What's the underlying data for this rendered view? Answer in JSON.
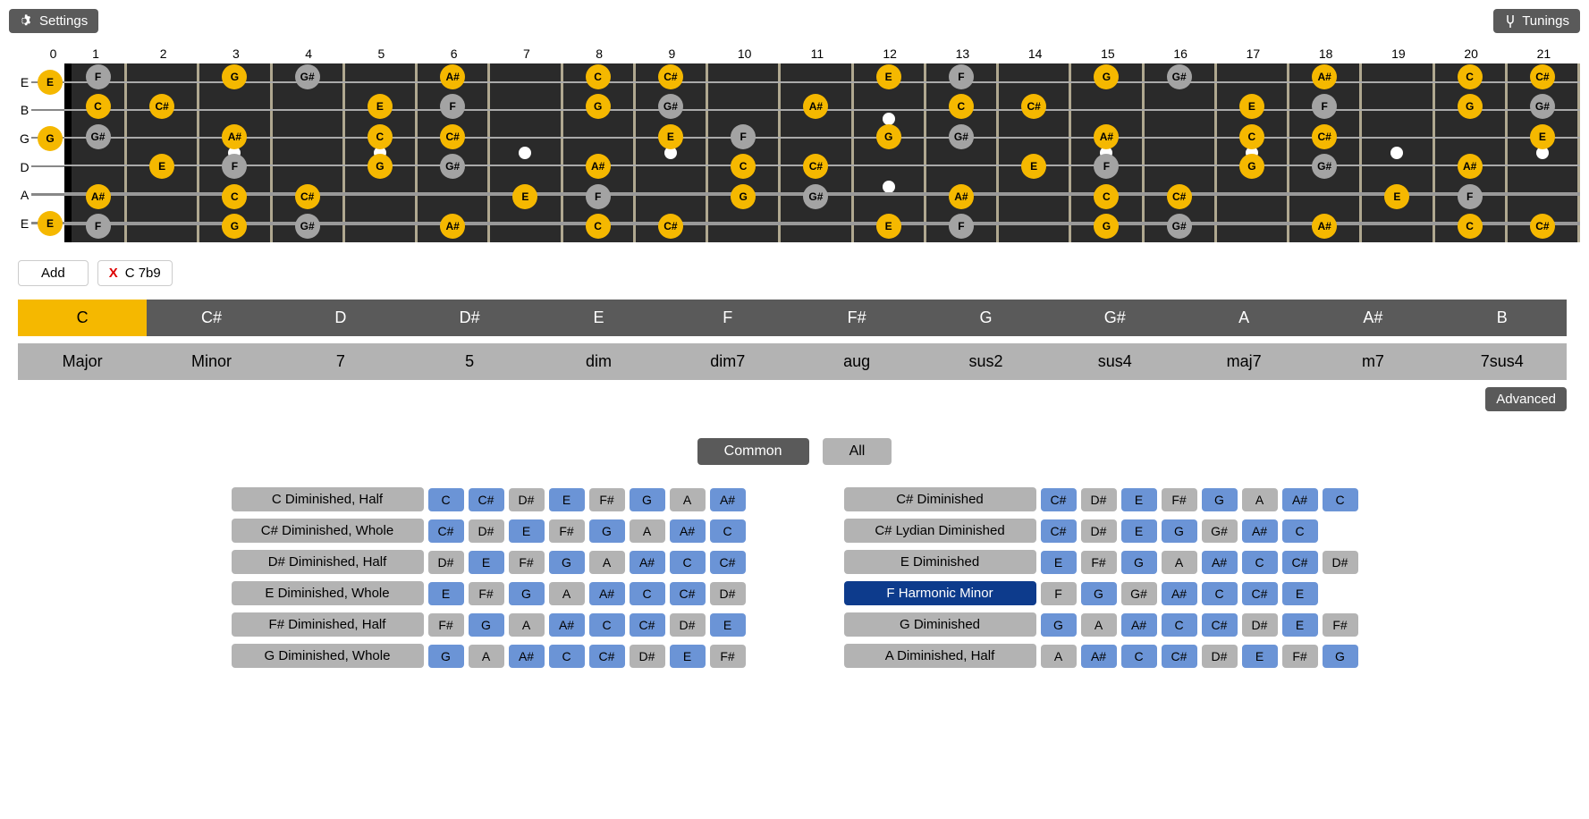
{
  "topbar": {
    "settings_label": "Settings",
    "tunings_label": "Tunings"
  },
  "fretboard": {
    "num_frets": 21,
    "string_labels": [
      "E",
      "B",
      "G",
      "D",
      "A",
      "E"
    ],
    "open_notes": [
      {
        "label": "E",
        "cls": "scale"
      },
      null,
      {
        "label": "G",
        "cls": "scale"
      },
      null,
      null,
      {
        "label": "E",
        "cls": "scale"
      }
    ],
    "inlay_single": [
      3,
      5,
      7,
      9,
      15,
      17,
      19,
      21
    ],
    "inlay_double": [
      12
    ],
    "string_y": [
      15,
      48,
      82,
      115,
      149,
      182
    ],
    "notes": [
      {
        "s": 0,
        "f": 1,
        "l": "F",
        "c": "other"
      },
      {
        "s": 0,
        "f": 3,
        "l": "G",
        "c": "scale"
      },
      {
        "s": 0,
        "f": 4,
        "l": "G#",
        "c": "other"
      },
      {
        "s": 0,
        "f": 6,
        "l": "A#",
        "c": "scale"
      },
      {
        "s": 0,
        "f": 8,
        "l": "C",
        "c": "scale"
      },
      {
        "s": 0,
        "f": 9,
        "l": "C#",
        "c": "scale"
      },
      {
        "s": 0,
        "f": 12,
        "l": "E",
        "c": "scale"
      },
      {
        "s": 0,
        "f": 13,
        "l": "F",
        "c": "other"
      },
      {
        "s": 0,
        "f": 15,
        "l": "G",
        "c": "scale"
      },
      {
        "s": 0,
        "f": 16,
        "l": "G#",
        "c": "other"
      },
      {
        "s": 0,
        "f": 18,
        "l": "A#",
        "c": "scale"
      },
      {
        "s": 0,
        "f": 20,
        "l": "C",
        "c": "scale"
      },
      {
        "s": 0,
        "f": 21,
        "l": "C#",
        "c": "scale"
      },
      {
        "s": 1,
        "f": 1,
        "l": "C",
        "c": "scale"
      },
      {
        "s": 1,
        "f": 2,
        "l": "C#",
        "c": "scale"
      },
      {
        "s": 1,
        "f": 5,
        "l": "E",
        "c": "scale"
      },
      {
        "s": 1,
        "f": 6,
        "l": "F",
        "c": "other"
      },
      {
        "s": 1,
        "f": 8,
        "l": "G",
        "c": "scale"
      },
      {
        "s": 1,
        "f": 9,
        "l": "G#",
        "c": "other"
      },
      {
        "s": 1,
        "f": 11,
        "l": "A#",
        "c": "scale"
      },
      {
        "s": 1,
        "f": 13,
        "l": "C",
        "c": "scale"
      },
      {
        "s": 1,
        "f": 14,
        "l": "C#",
        "c": "scale"
      },
      {
        "s": 1,
        "f": 17,
        "l": "E",
        "c": "scale"
      },
      {
        "s": 1,
        "f": 18,
        "l": "F",
        "c": "other"
      },
      {
        "s": 1,
        "f": 20,
        "l": "G",
        "c": "scale"
      },
      {
        "s": 1,
        "f": 21,
        "l": "G#",
        "c": "other"
      },
      {
        "s": 2,
        "f": 1,
        "l": "G#",
        "c": "other"
      },
      {
        "s": 2,
        "f": 3,
        "l": "A#",
        "c": "scale"
      },
      {
        "s": 2,
        "f": 5,
        "l": "C",
        "c": "scale"
      },
      {
        "s": 2,
        "f": 6,
        "l": "C#",
        "c": "scale"
      },
      {
        "s": 2,
        "f": 9,
        "l": "E",
        "c": "scale"
      },
      {
        "s": 2,
        "f": 10,
        "l": "F",
        "c": "other"
      },
      {
        "s": 2,
        "f": 12,
        "l": "G",
        "c": "scale"
      },
      {
        "s": 2,
        "f": 13,
        "l": "G#",
        "c": "other"
      },
      {
        "s": 2,
        "f": 15,
        "l": "A#",
        "c": "scale"
      },
      {
        "s": 2,
        "f": 17,
        "l": "C",
        "c": "scale"
      },
      {
        "s": 2,
        "f": 18,
        "l": "C#",
        "c": "scale"
      },
      {
        "s": 2,
        "f": 21,
        "l": "E",
        "c": "scale"
      },
      {
        "s": 3,
        "f": 2,
        "l": "E",
        "c": "scale"
      },
      {
        "s": 3,
        "f": 3,
        "l": "F",
        "c": "other"
      },
      {
        "s": 3,
        "f": 5,
        "l": "G",
        "c": "scale"
      },
      {
        "s": 3,
        "f": 6,
        "l": "G#",
        "c": "other"
      },
      {
        "s": 3,
        "f": 8,
        "l": "A#",
        "c": "scale"
      },
      {
        "s": 3,
        "f": 10,
        "l": "C",
        "c": "scale"
      },
      {
        "s": 3,
        "f": 11,
        "l": "C#",
        "c": "scale"
      },
      {
        "s": 3,
        "f": 14,
        "l": "E",
        "c": "scale"
      },
      {
        "s": 3,
        "f": 15,
        "l": "F",
        "c": "other"
      },
      {
        "s": 3,
        "f": 17,
        "l": "G",
        "c": "scale"
      },
      {
        "s": 3,
        "f": 18,
        "l": "G#",
        "c": "other"
      },
      {
        "s": 3,
        "f": 20,
        "l": "A#",
        "c": "scale"
      },
      {
        "s": 4,
        "f": 1,
        "l": "A#",
        "c": "scale"
      },
      {
        "s": 4,
        "f": 3,
        "l": "C",
        "c": "scale"
      },
      {
        "s": 4,
        "f": 4,
        "l": "C#",
        "c": "scale"
      },
      {
        "s": 4,
        "f": 7,
        "l": "E",
        "c": "scale"
      },
      {
        "s": 4,
        "f": 8,
        "l": "F",
        "c": "other"
      },
      {
        "s": 4,
        "f": 10,
        "l": "G",
        "c": "scale"
      },
      {
        "s": 4,
        "f": 11,
        "l": "G#",
        "c": "other"
      },
      {
        "s": 4,
        "f": 13,
        "l": "A#",
        "c": "scale"
      },
      {
        "s": 4,
        "f": 15,
        "l": "C",
        "c": "scale"
      },
      {
        "s": 4,
        "f": 16,
        "l": "C#",
        "c": "scale"
      },
      {
        "s": 4,
        "f": 19,
        "l": "E",
        "c": "scale"
      },
      {
        "s": 4,
        "f": 20,
        "l": "F",
        "c": "other"
      },
      {
        "s": 5,
        "f": 1,
        "l": "F",
        "c": "other"
      },
      {
        "s": 5,
        "f": 3,
        "l": "G",
        "c": "scale"
      },
      {
        "s": 5,
        "f": 4,
        "l": "G#",
        "c": "other"
      },
      {
        "s": 5,
        "f": 6,
        "l": "A#",
        "c": "scale"
      },
      {
        "s": 5,
        "f": 8,
        "l": "C",
        "c": "scale"
      },
      {
        "s": 5,
        "f": 9,
        "l": "C#",
        "c": "scale"
      },
      {
        "s": 5,
        "f": 12,
        "l": "E",
        "c": "scale"
      },
      {
        "s": 5,
        "f": 13,
        "l": "F",
        "c": "other"
      },
      {
        "s": 5,
        "f": 15,
        "l": "G",
        "c": "scale"
      },
      {
        "s": 5,
        "f": 16,
        "l": "G#",
        "c": "other"
      },
      {
        "s": 5,
        "f": 18,
        "l": "A#",
        "c": "scale"
      },
      {
        "s": 5,
        "f": 20,
        "l": "C",
        "c": "scale"
      },
      {
        "s": 5,
        "f": 21,
        "l": "C#",
        "c": "scale"
      }
    ]
  },
  "actions": {
    "add_label": "Add",
    "chord_label": "C 7b9"
  },
  "keys": {
    "list": [
      "C",
      "C#",
      "D",
      "D#",
      "E",
      "F",
      "F#",
      "G",
      "G#",
      "A",
      "A#",
      "B"
    ],
    "active": "C"
  },
  "types": {
    "list": [
      "Major",
      "Minor",
      "7",
      "5",
      "dim",
      "dim7",
      "aug",
      "sus2",
      "sus4",
      "maj7",
      "m7",
      "7sus4"
    ]
  },
  "advanced_label": "Advanced",
  "filter": {
    "common": "Common",
    "all": "All"
  },
  "chord_notes_set": [
    "C",
    "E",
    "G",
    "A#",
    "C#"
  ],
  "scales": {
    "left": [
      {
        "name": "C Diminished, Half",
        "notes": [
          "C",
          "C#",
          "D#",
          "E",
          "F#",
          "G",
          "A",
          "A#"
        ]
      },
      {
        "name": "C# Diminished, Whole",
        "notes": [
          "C#",
          "D#",
          "E",
          "F#",
          "G",
          "A",
          "A#",
          "C"
        ]
      },
      {
        "name": "D# Diminished, Half",
        "notes": [
          "D#",
          "E",
          "F#",
          "G",
          "A",
          "A#",
          "C",
          "C#"
        ]
      },
      {
        "name": "E Diminished, Whole",
        "notes": [
          "E",
          "F#",
          "G",
          "A",
          "A#",
          "C",
          "C#",
          "D#"
        ]
      },
      {
        "name": "F# Diminished, Half",
        "notes": [
          "F#",
          "G",
          "A",
          "A#",
          "C",
          "C#",
          "D#",
          "E"
        ]
      },
      {
        "name": "G Diminished, Whole",
        "notes": [
          "G",
          "A",
          "A#",
          "C",
          "C#",
          "D#",
          "E",
          "F#"
        ]
      }
    ],
    "right": [
      {
        "name": "C# Diminished",
        "notes": [
          "C#",
          "D#",
          "E",
          "F#",
          "G",
          "A",
          "A#",
          "C"
        ]
      },
      {
        "name": "C# Lydian Diminished",
        "notes": [
          "C#",
          "D#",
          "E",
          "G",
          "G#",
          "A#",
          "C"
        ]
      },
      {
        "name": "E Diminished",
        "notes": [
          "E",
          "F#",
          "G",
          "A",
          "A#",
          "C",
          "C#",
          "D#"
        ]
      },
      {
        "name": "F Harmonic Minor",
        "notes": [
          "F",
          "G",
          "G#",
          "A#",
          "C",
          "C#",
          "E"
        ],
        "selected": true
      },
      {
        "name": "G Diminished",
        "notes": [
          "G",
          "A",
          "A#",
          "C",
          "C#",
          "D#",
          "E",
          "F#"
        ]
      },
      {
        "name": "A Diminished, Half",
        "notes": [
          "A",
          "A#",
          "C",
          "C#",
          "D#",
          "E",
          "F#",
          "G"
        ]
      }
    ]
  }
}
